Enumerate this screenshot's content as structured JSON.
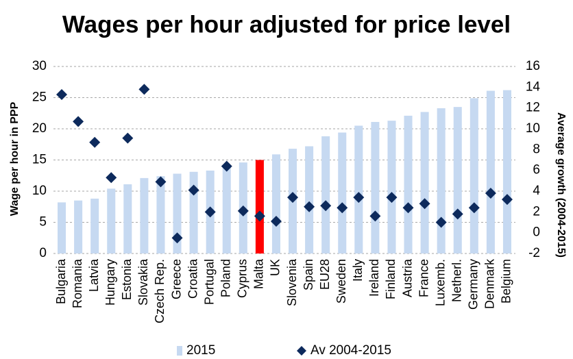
{
  "chart_data": {
    "type": "bar_dot",
    "title": "Wages per hour adjusted for price level",
    "ylabel": "Wage per hour in PPP",
    "y2label": "Average growth (2004-2015)",
    "categories": [
      "Bulgaria",
      "Romania",
      "Latvia",
      "Hungary",
      "Estonia",
      "Slovakia",
      "Czech Rep.",
      "Greece",
      "Croatia",
      "Portugal",
      "Poland",
      "Cyprus",
      "Malta",
      "UK",
      "Slovenia",
      "Spain",
      "EU28",
      "Sweden",
      "Italy",
      "Ireland",
      "Finland",
      "Austria",
      "France",
      "Luxemb.",
      "Netherl.",
      "Germany",
      "Denmark",
      "Belgium"
    ],
    "series": [
      {
        "name": "2015",
        "color": "#c6d9f1",
        "highlight": {
          "category": "Malta",
          "color": "#ff0000"
        },
        "values": [
          8.2,
          8.5,
          8.8,
          10.4,
          11.1,
          12.1,
          12.4,
          12.8,
          13.1,
          13.3,
          13.8,
          14.6,
          15.0,
          15.9,
          16.8,
          17.2,
          18.8,
          19.4,
          20.5,
          21.1,
          21.3,
          22.1,
          22.7,
          23.3,
          23.5,
          24.9,
          26.1,
          26.2
        ]
      },
      {
        "name": "Av 2004-2015",
        "color": "#0d2a5c",
        "axis": "y2",
        "values": [
          13.3,
          10.7,
          8.7,
          5.3,
          9.1,
          13.8,
          4.9,
          -0.5,
          4.1,
          2.0,
          6.4,
          2.1,
          1.6,
          1.1,
          3.4,
          2.5,
          2.6,
          2.4,
          3.4,
          1.6,
          3.4,
          2.4,
          2.8,
          1.0,
          1.8,
          2.4,
          3.8,
          3.2
        ]
      }
    ],
    "ylim": [
      0,
      30
    ],
    "yticks": [
      0,
      5,
      10,
      15,
      20,
      25,
      30
    ],
    "y2lim": [
      -2,
      16
    ],
    "y2ticks": [
      -2,
      0,
      2,
      4,
      6,
      8,
      10,
      12,
      14,
      16
    ],
    "grid": true
  }
}
